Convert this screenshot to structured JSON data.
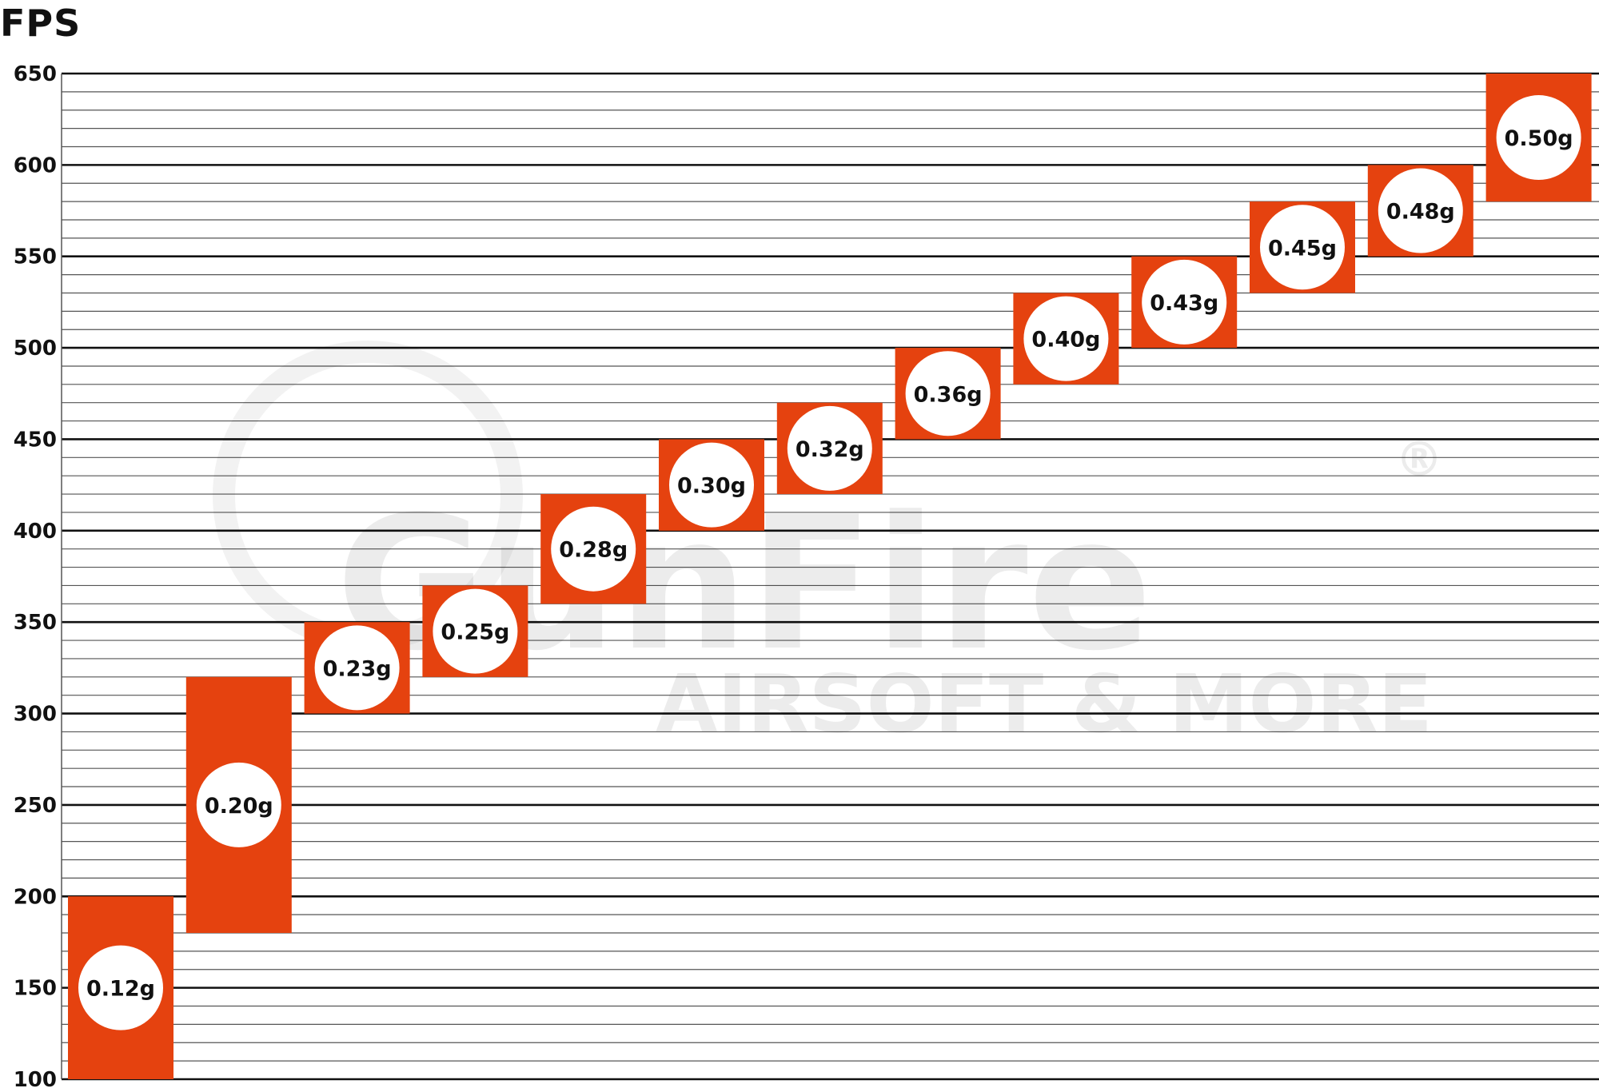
{
  "chart_data": {
    "type": "bar",
    "subtype": "floating-range",
    "title": "FPS",
    "xlabel": "",
    "ylabel": "FPS",
    "ylim": [
      100,
      650
    ],
    "yticks": [
      100,
      150,
      200,
      250,
      300,
      350,
      400,
      450,
      500,
      550,
      600,
      650
    ],
    "minor_grid_step": 10,
    "grid": true,
    "bar_color": "#E5420F",
    "categories": [
      "0.12g",
      "0.20g",
      "0.23g",
      "0.25g",
      "0.28g",
      "0.30g",
      "0.32g",
      "0.36g",
      "0.40g",
      "0.43g",
      "0.45g",
      "0.48g",
      "0.50g"
    ],
    "ranges": [
      [
        100,
        200
      ],
      [
        180,
        320
      ],
      [
        300,
        350
      ],
      [
        320,
        370
      ],
      [
        360,
        420
      ],
      [
        400,
        450
      ],
      [
        420,
        470
      ],
      [
        450,
        500
      ],
      [
        480,
        530
      ],
      [
        500,
        550
      ],
      [
        530,
        580
      ],
      [
        550,
        600
      ],
      [
        580,
        650
      ]
    ]
  },
  "watermark": {
    "brand": "GunFire",
    "tagline": "AIRSOFT & MORE",
    "mark": "®"
  }
}
